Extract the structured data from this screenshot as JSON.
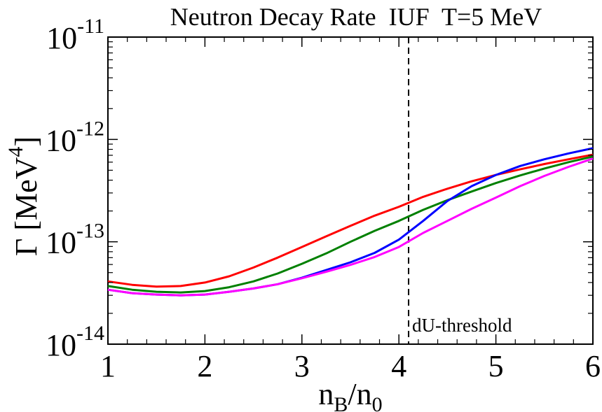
{
  "chart_data": {
    "type": "line",
    "title": "Neutron Decay Rate  IUF  T=5 MeV",
    "xlabel": {
      "base": "n",
      "sub1": "B",
      "sep": "/n",
      "sub2": "0"
    },
    "ylabel": {
      "prefix": "Γ [MeV",
      "sup": "4",
      "suffix": "]"
    },
    "xlim": [
      1,
      6
    ],
    "ylim": [
      1e-14,
      1e-11
    ],
    "yscale": "log",
    "xticks": [
      "1",
      "2",
      "3",
      "4",
      "5",
      "6"
    ],
    "yticks": [
      {
        "base": "10",
        "exp": "-14",
        "value": 1e-14
      },
      {
        "base": "10",
        "exp": "-13",
        "value": 1e-13
      },
      {
        "base": "10",
        "exp": "-12",
        "value": 1e-12
      },
      {
        "base": "10",
        "exp": "-11",
        "value": 1e-11
      }
    ],
    "grid": false,
    "annotations": [
      {
        "text": "dU-threshold",
        "x": 4.1
      }
    ],
    "x": [
      1.0,
      1.25,
      1.5,
      1.75,
      2.0,
      2.25,
      2.5,
      2.75,
      3.0,
      3.25,
      3.5,
      3.75,
      4.0,
      4.25,
      4.5,
      4.75,
      5.0,
      5.25,
      5.5,
      5.75,
      6.0
    ],
    "series": [
      {
        "color": "#ff0000",
        "values": [
          4.1e-14,
          3.8e-14,
          3.65e-14,
          3.7e-14,
          4e-14,
          4.6e-14,
          5.6e-14,
          7e-14,
          8.9e-14,
          1.13e-13,
          1.43e-13,
          1.8e-13,
          2.2e-13,
          2.75e-13,
          3.3e-13,
          3.9e-13,
          4.5e-13,
          5.1e-13,
          5.75e-13,
          6.4e-13,
          7.1e-13
        ]
      },
      {
        "color": "#008000",
        "values": [
          3.7e-14,
          3.4e-14,
          3.25e-14,
          3.2e-14,
          3.3e-14,
          3.6e-14,
          4.1e-14,
          4.9e-14,
          6.1e-14,
          7.7e-14,
          1e-13,
          1.28e-13,
          1.6e-13,
          2.05e-13,
          2.55e-13,
          3.1e-13,
          3.75e-13,
          4.45e-13,
          5.2e-13,
          6e-13,
          6.8e-13
        ]
      },
      {
        "color": "#0000ff",
        "values": [
          3.4e-14,
          3.15e-14,
          3.05e-14,
          3e-14,
          3.05e-14,
          3.25e-14,
          3.5e-14,
          3.85e-14,
          4.45e-14,
          5.3e-14,
          6.3e-14,
          7.8e-14,
          1.05e-13,
          1.6e-13,
          2.5e-13,
          3.5e-13,
          4.5e-13,
          5.5e-13,
          6.4e-13,
          7.3e-13,
          8.2e-13
        ]
      },
      {
        "color": "#ff00ff",
        "values": [
          3.4e-14,
          3.15e-14,
          3.05e-14,
          3e-14,
          3.05e-14,
          3.25e-14,
          3.5e-14,
          3.85e-14,
          4.4e-14,
          5.1e-14,
          5.95e-14,
          7.1e-14,
          8.9e-14,
          1.22e-13,
          1.6e-13,
          2.1e-13,
          2.7e-13,
          3.5e-13,
          4.4e-13,
          5.4e-13,
          6.5e-13
        ]
      }
    ]
  }
}
